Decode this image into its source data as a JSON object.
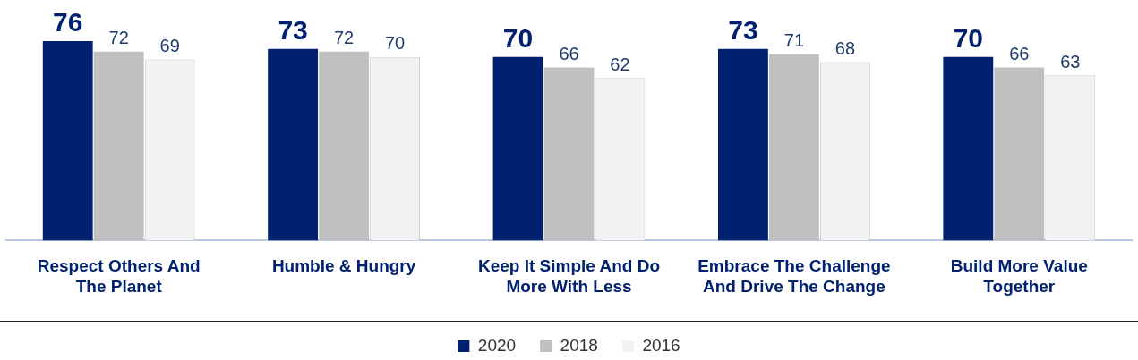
{
  "chart_data": {
    "type": "bar",
    "categories": [
      "Respect Others And The Planet",
      "Humble & Hungry",
      "Keep It Simple And Do More With Less",
      "Embrace The Challenge And Drive The Change",
      "Build More Value Together"
    ],
    "series": [
      {
        "name": "2020",
        "color": "#002070",
        "values": [
          76,
          73,
          70,
          73,
          70
        ]
      },
      {
        "name": "2018",
        "color": "#c0c0c0",
        "values": [
          72,
          72,
          66,
          71,
          66
        ]
      },
      {
        "name": "2016",
        "color": "#f2f2f2",
        "values": [
          69,
          70,
          62,
          68,
          63
        ]
      }
    ],
    "data_labels": true,
    "legend": "bottom",
    "grid": false
  }
}
